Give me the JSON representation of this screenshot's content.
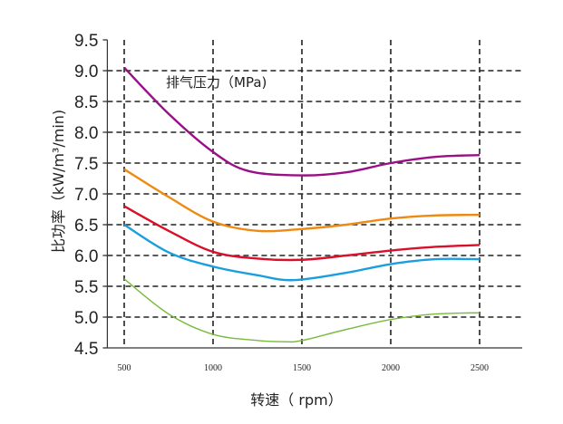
{
  "chart_data": {
    "type": "line",
    "title": "",
    "xlabel": "转速（ rpm）",
    "ylabel": "比功率（kW/m³/min)",
    "annotation": "排气压力（MPa)",
    "xlim": [
      400,
      2740
    ],
    "ylim": [
      4.5,
      9.5
    ],
    "xticks": [
      500,
      1000,
      1500,
      2000,
      2500
    ],
    "xtick_labels": [
      "500",
      "1000",
      "1500",
      "2000",
      "2500"
    ],
    "yticks": [
      4.5,
      5.0,
      5.5,
      6.0,
      6.5,
      7.0,
      7.5,
      8.0,
      8.5,
      9.0,
      9.5
    ],
    "ytick_labels": [
      "4.5",
      "5.0",
      "5.5",
      "6.0",
      "6.5",
      "7.0",
      "7.5",
      "8.0",
      "8.5",
      "9.0",
      "9.5"
    ],
    "grid": true,
    "series": [
      {
        "color": "#9b0f86",
        "x": [
          500,
          750,
          1000,
          1200,
          1500,
          1750,
          2000,
          2250,
          2500
        ],
        "y": [
          9.05,
          8.3,
          7.68,
          7.37,
          7.3,
          7.35,
          7.5,
          7.6,
          7.63
        ]
      },
      {
        "color": "#ee8a12",
        "x": [
          500,
          750,
          1000,
          1250,
          1500,
          1750,
          2000,
          2250,
          2500
        ],
        "y": [
          7.4,
          6.95,
          6.55,
          6.4,
          6.43,
          6.5,
          6.6,
          6.65,
          6.66
        ]
      },
      {
        "color": "#d8102a",
        "x": [
          500,
          750,
          1000,
          1250,
          1500,
          1750,
          2000,
          2250,
          2500
        ],
        "y": [
          6.8,
          6.4,
          6.06,
          5.95,
          5.93,
          6.0,
          6.08,
          6.14,
          6.17
        ]
      },
      {
        "color": "#1a9ee0",
        "x": [
          500,
          750,
          1000,
          1250,
          1450,
          1750,
          2000,
          2250,
          2500
        ],
        "y": [
          6.5,
          6.05,
          5.82,
          5.68,
          5.6,
          5.72,
          5.86,
          5.94,
          5.94
        ]
      },
      {
        "color": "#78bb3c",
        "x": [
          500,
          750,
          1000,
          1250,
          1400,
          1500,
          1750,
          2000,
          2250,
          2500
        ],
        "y": [
          5.62,
          5.05,
          4.72,
          4.62,
          4.6,
          4.62,
          4.8,
          4.96,
          5.05,
          5.07
        ]
      }
    ]
  }
}
